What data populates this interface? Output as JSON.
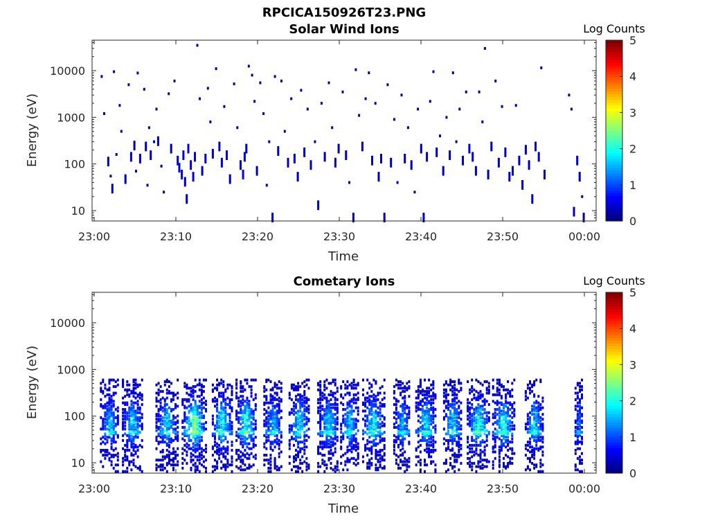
{
  "figure": {
    "title": "RPCICA150926T23.PNG"
  },
  "chart_data": [
    {
      "type": "heatmap",
      "title": "Solar Wind Ions",
      "xlabel": "Time",
      "ylabel": "Energy (eV)",
      "x_ticks": [
        "23:00",
        "23:10",
        "23:20",
        "23:30",
        "23:40",
        "23:50",
        "00:00"
      ],
      "x_range_minutes": [
        0,
        61
      ],
      "y_scale": "log",
      "y_ticks": [
        10,
        100,
        1000,
        10000
      ],
      "y_tick_labels": [
        "10",
        "100",
        "1000",
        "10000"
      ],
      "ylim": [
        6,
        45000
      ],
      "colorbar": {
        "label": "Log Counts",
        "ticks": [
          0,
          1,
          2,
          3,
          4,
          5
        ],
        "range": [
          0,
          5
        ],
        "colormap": "jet"
      },
      "cells": [
        [
          0.8,
          7500,
          0.2
        ],
        [
          1.1,
          1200,
          0.2
        ],
        [
          1.6,
          95,
          0.3
        ],
        [
          1.9,
          55,
          0.2
        ],
        [
          2.1,
          25,
          0.3
        ],
        [
          2.3,
          9500,
          0.2
        ],
        [
          2.6,
          160,
          0.2
        ],
        [
          3.0,
          1800,
          0.2
        ],
        [
          3.2,
          500,
          0.2
        ],
        [
          3.7,
          40,
          0.3
        ],
        [
          4.1,
          5000,
          0.2
        ],
        [
          4.4,
          120,
          0.4
        ],
        [
          4.8,
          210,
          0.3
        ],
        [
          5.0,
          70,
          0.2
        ],
        [
          5.2,
          8900,
          0.2
        ],
        [
          5.5,
          110,
          0.3
        ],
        [
          6.0,
          4000,
          0.2
        ],
        [
          6.2,
          200,
          0.3
        ],
        [
          6.4,
          35,
          0.2
        ],
        [
          6.6,
          600,
          0.2
        ],
        [
          6.8,
          130,
          0.3
        ],
        [
          7.2,
          300,
          0.2
        ],
        [
          7.5,
          1500,
          0.2
        ],
        [
          7.7,
          260,
          0.3
        ],
        [
          8.1,
          90,
          0.2
        ],
        [
          8.4,
          25,
          0.2
        ],
        [
          9.0,
          3200,
          0.2
        ],
        [
          9.3,
          180,
          0.3
        ],
        [
          9.7,
          6000,
          0.2
        ],
        [
          10.1,
          100,
          0.5
        ],
        [
          10.3,
          70,
          0.6
        ],
        [
          10.6,
          50,
          0.7
        ],
        [
          10.8,
          130,
          0.5
        ],
        [
          11.0,
          35,
          0.4
        ],
        [
          11.2,
          15,
          0.3
        ],
        [
          11.4,
          180,
          0.6
        ],
        [
          11.7,
          80,
          0.5
        ],
        [
          12.0,
          45,
          0.6
        ],
        [
          12.2,
          120,
          0.5
        ],
        [
          12.5,
          35000,
          0.2
        ],
        [
          12.8,
          2500,
          0.2
        ],
        [
          13.1,
          60,
          0.4
        ],
        [
          13.5,
          110,
          0.5
        ],
        [
          13.8,
          4200,
          0.2
        ],
        [
          14.1,
          800,
          0.2
        ],
        [
          14.4,
          140,
          0.3
        ],
        [
          14.8,
          11000,
          0.2
        ],
        [
          15.2,
          200,
          0.5
        ],
        [
          15.5,
          90,
          0.6
        ],
        [
          15.8,
          1700,
          0.2
        ],
        [
          16.1,
          130,
          0.4
        ],
        [
          16.5,
          40,
          0.3
        ],
        [
          17.0,
          5200,
          0.2
        ],
        [
          17.4,
          600,
          0.2
        ],
        [
          17.8,
          80,
          0.3
        ],
        [
          18.1,
          50,
          0.7
        ],
        [
          18.3,
          120,
          0.5
        ],
        [
          18.5,
          180,
          0.4
        ],
        [
          18.8,
          12500,
          0.2
        ],
        [
          19.2,
          8000,
          0.2
        ],
        [
          19.5,
          2200,
          0.2
        ],
        [
          19.8,
          60,
          0.3
        ],
        [
          20.2,
          5500,
          0.2
        ],
        [
          20.6,
          1200,
          0.2
        ],
        [
          21.0,
          35,
          0.2
        ],
        [
          21.3,
          300,
          0.2
        ],
        [
          21.7,
          6,
          0.4
        ],
        [
          22.0,
          7500,
          0.2
        ],
        [
          22.4,
          160,
          0.3
        ],
        [
          22.8,
          6000,
          0.2
        ],
        [
          23.2,
          500,
          0.2
        ],
        [
          23.6,
          90,
          0.3
        ],
        [
          24.0,
          2500,
          0.2
        ],
        [
          24.4,
          110,
          0.4
        ],
        [
          24.8,
          45,
          0.3
        ],
        [
          25.2,
          3800,
          0.2
        ],
        [
          25.6,
          150,
          0.3
        ],
        [
          26.0,
          1500,
          0.2
        ],
        [
          26.4,
          80,
          0.3
        ],
        [
          26.9,
          300,
          0.2
        ],
        [
          27.3,
          11,
          0.3
        ],
        [
          27.7,
          2000,
          0.2
        ],
        [
          28.1,
          120,
          0.3
        ],
        [
          28.6,
          5500,
          0.2
        ],
        [
          29.0,
          600,
          0.2
        ],
        [
          29.4,
          90,
          0.3
        ],
        [
          29.8,
          180,
          0.3
        ],
        [
          30.3,
          3500,
          0.2
        ],
        [
          30.7,
          130,
          0.3
        ],
        [
          31.1,
          40,
          0.2
        ],
        [
          31.6,
          6,
          0.3
        ],
        [
          31.9,
          10500,
          0.2
        ],
        [
          32.3,
          1100,
          0.2
        ],
        [
          32.7,
          200,
          0.3
        ],
        [
          33.1,
          2500,
          0.2
        ],
        [
          33.5,
          9000,
          0.2
        ],
        [
          33.9,
          100,
          0.3
        ],
        [
          34.3,
          2000,
          0.2
        ],
        [
          34.7,
          45,
          0.3
        ],
        [
          35.0,
          110,
          0.3
        ],
        [
          35.4,
          6,
          0.3
        ],
        [
          35.8,
          5000,
          0.2
        ],
        [
          36.2,
          90,
          0.3
        ],
        [
          36.6,
          900,
          0.2
        ],
        [
          37.0,
          40,
          0.2
        ],
        [
          37.5,
          3000,
          0.2
        ],
        [
          37.9,
          110,
          0.3
        ],
        [
          38.3,
          600,
          0.2
        ],
        [
          38.7,
          80,
          0.3
        ],
        [
          39.1,
          25,
          0.2
        ],
        [
          39.5,
          1500,
          0.2
        ],
        [
          39.9,
          180,
          0.3
        ],
        [
          40.2,
          6,
          0.3
        ],
        [
          40.6,
          120,
          0.4
        ],
        [
          41.0,
          2200,
          0.2
        ],
        [
          41.4,
          9500,
          0.2
        ],
        [
          41.8,
          150,
          0.3
        ],
        [
          42.2,
          400,
          0.2
        ],
        [
          42.6,
          60,
          0.3
        ],
        [
          43.0,
          1000,
          0.2
        ],
        [
          43.4,
          130,
          0.3
        ],
        [
          43.8,
          9000,
          0.2
        ],
        [
          44.2,
          300,
          0.2
        ],
        [
          44.6,
          1500,
          0.2
        ],
        [
          45.0,
          100,
          0.3
        ],
        [
          45.4,
          3500,
          0.2
        ],
        [
          45.8,
          180,
          0.5
        ],
        [
          46.2,
          120,
          0.6
        ],
        [
          46.6,
          60,
          0.4
        ],
        [
          47.0,
          3500,
          0.2
        ],
        [
          47.4,
          800,
          0.2
        ],
        [
          47.7,
          30000,
          0.2
        ],
        [
          48.1,
          50,
          0.3
        ],
        [
          48.5,
          200,
          0.3
        ],
        [
          49.0,
          6000,
          0.2
        ],
        [
          49.4,
          90,
          0.4
        ],
        [
          49.8,
          1700,
          0.2
        ],
        [
          50.2,
          150,
          0.3
        ],
        [
          50.7,
          45,
          0.4
        ],
        [
          51.1,
          60,
          0.3
        ],
        [
          51.5,
          1800,
          0.2
        ],
        [
          51.9,
          100,
          0.3
        ],
        [
          52.3,
          30,
          0.3
        ],
        [
          52.7,
          170,
          0.3
        ],
        [
          53.1,
          80,
          0.3
        ],
        [
          53.5,
          15,
          0.4
        ],
        [
          53.9,
          200,
          0.4
        ],
        [
          54.3,
          120,
          0.5
        ],
        [
          54.6,
          11500,
          0.2
        ],
        [
          55.0,
          50,
          0.3
        ],
        [
          58.0,
          3000,
          0.2
        ],
        [
          58.3,
          1500,
          0.2
        ],
        [
          58.6,
          8,
          0.3
        ],
        [
          59.0,
          100,
          0.4
        ],
        [
          59.3,
          45,
          0.3
        ],
        [
          59.6,
          20,
          0.2
        ],
        [
          59.8,
          6,
          0.3
        ]
      ]
    },
    {
      "type": "heatmap",
      "title": "Cometary Ions",
      "xlabel": "Time",
      "ylabel": "Energy (eV)",
      "x_ticks": [
        "23:00",
        "23:10",
        "23:20",
        "23:30",
        "23:40",
        "23:50",
        "00:00"
      ],
      "x_range_minutes": [
        0,
        61
      ],
      "y_scale": "log",
      "y_ticks": [
        10,
        100,
        1000,
        10000
      ],
      "y_tick_labels": [
        "10",
        "100",
        "1000",
        "10000"
      ],
      "ylim": [
        6,
        45000
      ],
      "colorbar": {
        "label": "Log Counts",
        "ticks": [
          0,
          1,
          2,
          3,
          4,
          5
        ],
        "range": [
          0,
          5
        ],
        "colormap": "jet"
      },
      "bursts": [
        [
          1.8,
          1.1,
          1.4
        ],
        [
          4.6,
          1.2,
          1.6
        ],
        [
          8.8,
          1.3,
          1.5
        ],
        [
          12.2,
          1.5,
          2.4
        ],
        [
          15.6,
          1.2,
          2.0
        ],
        [
          18.5,
          1.2,
          2.1
        ],
        [
          21.8,
          1.1,
          1.4
        ],
        [
          25.0,
          1.2,
          1.8
        ],
        [
          28.6,
          1.3,
          1.6
        ],
        [
          31.2,
          1.1,
          1.5
        ],
        [
          34.1,
          1.3,
          1.8
        ],
        [
          37.6,
          1.0,
          1.4
        ],
        [
          40.5,
          1.2,
          1.7
        ],
        [
          43.8,
          1.1,
          1.6
        ],
        [
          47.0,
          1.4,
          2.0
        ],
        [
          50.0,
          1.3,
          1.9
        ],
        [
          53.8,
          1.1,
          1.6
        ],
        [
          59.3,
          0.5,
          1.0
        ]
      ]
    }
  ]
}
